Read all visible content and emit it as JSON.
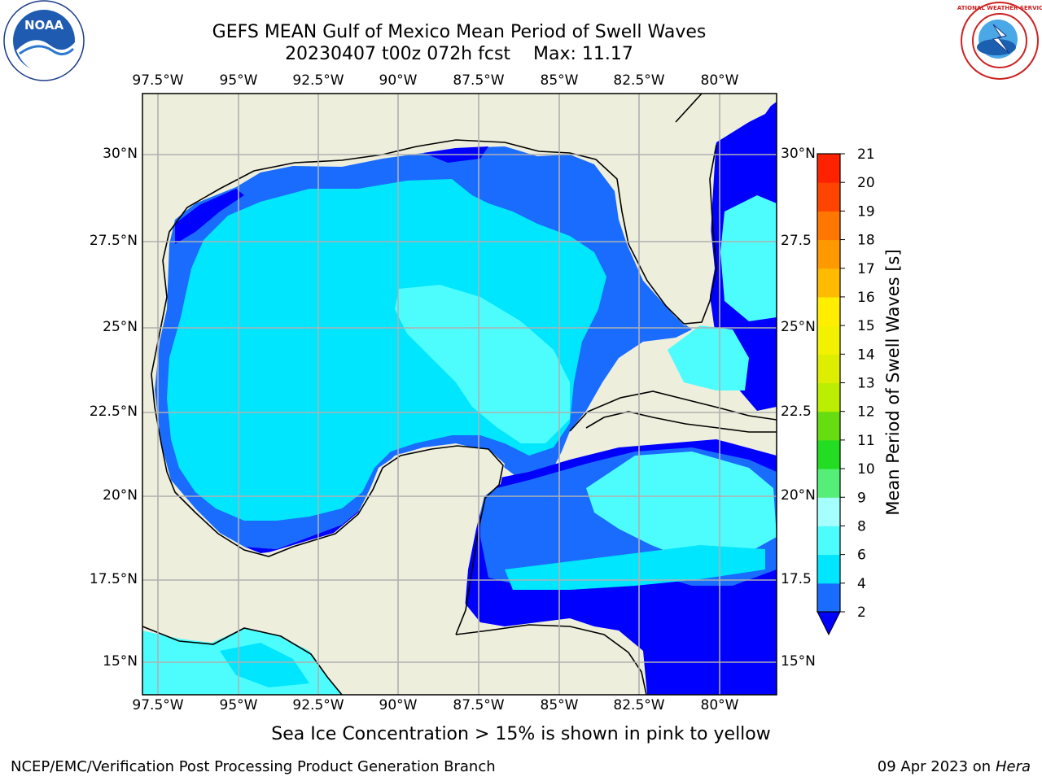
{
  "title": {
    "line1": "GEFS MEAN Gulf of Mexico Mean Period of Swell Waves",
    "run": "20230407 t00z 072h fcst",
    "max": "Max: 11.17"
  },
  "logos": {
    "left": {
      "icon": "noaa-logo",
      "text": "NOAA"
    },
    "right": {
      "icon": "nws-logo",
      "text": "NATIONAL WEATHER SERVICE"
    }
  },
  "map": {
    "lon_labels": [
      "97.5°W",
      "95°W",
      "92.5°W",
      "90°W",
      "87.5°W",
      "85°W",
      "82.5°W",
      "80°W"
    ],
    "lat_labels": [
      "30°N",
      "27.5°N",
      "25°N",
      "22.5°N",
      "20°N",
      "17.5°N",
      "15°N"
    ],
    "lat_labels_right": [
      "30°N",
      "27.5",
      "25°N",
      "22.5",
      "20°N",
      "17.5",
      "15°N"
    ],
    "colors": {
      "land": "#eeeedd",
      "grid": "#b0b0b0",
      "coast": "#000000"
    }
  },
  "colorbar": {
    "label": "Mean Period of Swell Waves [s]",
    "ticks": [
      "2",
      "4",
      "6",
      "8",
      "9",
      "10",
      "11",
      "12",
      "13",
      "14",
      "15",
      "16",
      "17",
      "18",
      "19",
      "20",
      "21"
    ],
    "levels": [
      {
        "from": 2,
        "to": 4,
        "color": "#1a6cff"
      },
      {
        "from": 4,
        "to": 6,
        "color": "#00e6ff"
      },
      {
        "from": 6,
        "to": 8,
        "color": "#4dfdfd"
      },
      {
        "from": 8,
        "to": 9,
        "color": "#a6ffff"
      },
      {
        "from": 9,
        "to": 10,
        "color": "#55ee77"
      },
      {
        "from": 10,
        "to": 11,
        "color": "#22dd22"
      },
      {
        "from": 11,
        "to": 12,
        "color": "#66dd11"
      },
      {
        "from": 12,
        "to": 13,
        "color": "#bbee00"
      },
      {
        "from": 13,
        "to": 14,
        "color": "#ddee00"
      },
      {
        "from": 14,
        "to": 15,
        "color": "#f2f200"
      },
      {
        "from": 15,
        "to": 16,
        "color": "#ffee00"
      },
      {
        "from": 16,
        "to": 17,
        "color": "#ffbb00"
      },
      {
        "from": 17,
        "to": 18,
        "color": "#ff9900"
      },
      {
        "from": 18,
        "to": 19,
        "color": "#ff7700"
      },
      {
        "from": 19,
        "to": 20,
        "color": "#ff4400"
      },
      {
        "from": 20,
        "to": 21,
        "color": "#ff2200"
      }
    ],
    "under_color": "#0000ff"
  },
  "note": "Sea Ice Concentration > 15% is shown in pink to yellow",
  "footer": {
    "left": "NCEP/EMC/Verification Post Processing Product Generation Branch",
    "date": "09 Apr 2023 on ",
    "machine": "Hera"
  }
}
